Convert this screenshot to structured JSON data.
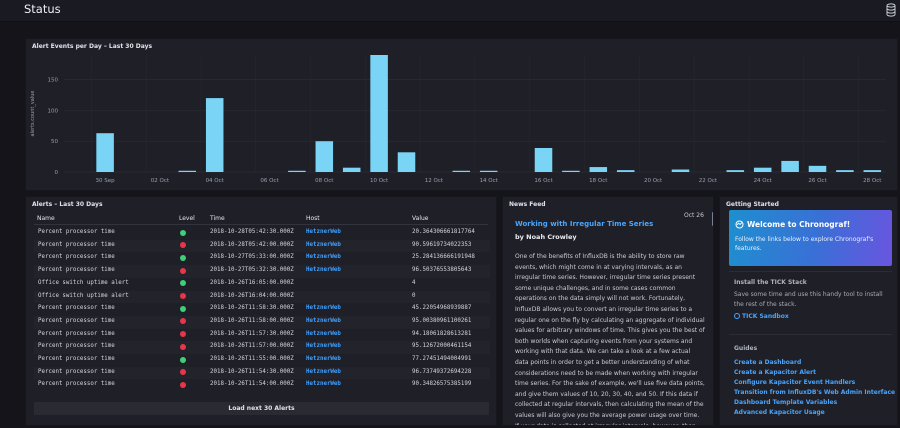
{
  "page": {
    "title": "Status"
  },
  "header_icons": {
    "database": "database-icon"
  },
  "chart_panel": {
    "title": "Alert Events per Day – Last 30 Days"
  },
  "chart_data": {
    "type": "bar",
    "title": "Alert Events per Day – Last 30 Days",
    "ylabel": "alerts.count_value",
    "xlabel": "",
    "ylim": [
      0,
      190
    ],
    "yticks": [
      0,
      50,
      100,
      150
    ],
    "xtick_labels": [
      "30 Sep",
      "02 Oct",
      "04 Oct",
      "06 Oct",
      "08 Oct",
      "10 Oct",
      "12 Oct",
      "14 Oct",
      "16 Oct",
      "18 Oct",
      "20 Oct",
      "22 Oct",
      "24 Oct",
      "26 Oct",
      "28 Oct"
    ],
    "categories": [
      "29 Sep",
      "30 Sep",
      "01 Oct",
      "02 Oct",
      "03 Oct",
      "04 Oct",
      "05 Oct",
      "06 Oct",
      "07 Oct",
      "08 Oct",
      "09 Oct",
      "10 Oct",
      "11 Oct",
      "12 Oct",
      "13 Oct",
      "14 Oct",
      "15 Oct",
      "16 Oct",
      "17 Oct",
      "18 Oct",
      "19 Oct",
      "20 Oct",
      "21 Oct",
      "22 Oct",
      "23 Oct",
      "24 Oct",
      "25 Oct",
      "26 Oct",
      "27 Oct",
      "28 Oct"
    ],
    "values": [
      0,
      63,
      0,
      0,
      2,
      120,
      0,
      0,
      2,
      50,
      7,
      190,
      32,
      0,
      2,
      2,
      0,
      39,
      2,
      8,
      3,
      0,
      4,
      0,
      3,
      7,
      18,
      10,
      3,
      3
    ],
    "bar_color": "#7ad4f6",
    "grid": true
  },
  "alerts": {
    "title": "Alerts – Last 30 Days",
    "columns": [
      "Name",
      "Level",
      "Time",
      "Host",
      "Value"
    ],
    "rows": [
      {
        "name": "Percent processor time",
        "level": "ok",
        "time": "2018-10-28T05:42:30.000Z",
        "host": "HetznerWeb",
        "value": "20.364306661817764"
      },
      {
        "name": "Percent processor time",
        "level": "critical",
        "time": "2018-10-28T05:42:00.000Z",
        "host": "HetznerWeb",
        "value": "90.59619734022353"
      },
      {
        "name": "Percent processor time",
        "level": "ok",
        "time": "2018-10-27T05:33:00.000Z",
        "host": "HetznerWeb",
        "value": "25.284136666191948"
      },
      {
        "name": "Percent processor time",
        "level": "critical",
        "time": "2018-10-27T05:32:30.000Z",
        "host": "HetznerWeb",
        "value": "96.50376553805643"
      },
      {
        "name": "Office switch uptime alert",
        "level": "ok",
        "time": "2018-10-26T16:05:00.000Z",
        "host": "",
        "value": "4"
      },
      {
        "name": "Office switch uptime alert",
        "level": "critical",
        "time": "2018-10-26T16:04:00.000Z",
        "host": "",
        "value": "0"
      },
      {
        "name": "Percent processor time",
        "level": "ok",
        "time": "2018-10-26T11:58:30.000Z",
        "host": "HetznerWeb",
        "value": "45.22054968939887"
      },
      {
        "name": "Percent processor time",
        "level": "critical",
        "time": "2018-10-26T11:58:00.000Z",
        "host": "HetznerWeb",
        "value": "95.00380961100261"
      },
      {
        "name": "Percent processor time",
        "level": "critical",
        "time": "2018-10-26T11:57:30.000Z",
        "host": "HetznerWeb",
        "value": "94.18061828613281"
      },
      {
        "name": "Percent processor time",
        "level": "critical",
        "time": "2018-10-26T11:57:00.000Z",
        "host": "HetznerWeb",
        "value": "95.12672000461154"
      },
      {
        "name": "Percent processor time",
        "level": "ok",
        "time": "2018-10-26T11:55:00.000Z",
        "host": "HetznerWeb",
        "value": "77.27451494004991"
      },
      {
        "name": "Percent processor time",
        "level": "critical",
        "time": "2018-10-26T11:54:30.000Z",
        "host": "HetznerWeb",
        "value": "96.73749372694228"
      },
      {
        "name": "Percent processor time",
        "level": "critical",
        "time": "2018-10-26T11:54:00.000Z",
        "host": "HetznerWeb",
        "value": "90.34826575385199"
      }
    ],
    "load_more": "Load next 30 Alerts",
    "level_colors": {
      "ok": "#3dd078",
      "critical": "#e8354a"
    }
  },
  "news": {
    "title": "News Feed",
    "date": "Oct 26",
    "article_title": "Working with Irregular Time Series",
    "author": "by Noah Crowley",
    "body": "One of the benefits of InfluxDB is the ability to store raw events, which might come in at varying intervals, as an irregular time series. However, irregular time series present some unique challenges, and in some cases common operations on the data simply will not work. Fortunately, InfluxDB allows you to convert an irregular time series to a regular one on the fly by calculating an aggregate of individual values for arbitrary windows of time. This gives you the best of both worlds when capturing events from your systems and working with that data. We can take a look at a few actual data points in order to get a better understanding of what considerations need to be made when working with irregular time series. For the sake of example, we'll use five data points, and give them values of 10, 20, 30, 40, and 50. If this data if collected at regular intervals, then calculating the mean of the values will also give you the average power usage over time. If your data is collected at irregular intervals, however, then calculating the mean of the values will not give"
  },
  "getting_started": {
    "title": "Getting Started",
    "welcome_title": "Welcome to Chronograf!",
    "welcome_desc": "Follow the links below to explore Chronograf's features.",
    "tick_heading": "Install the TICK Stack",
    "tick_desc": "Save some time and use this handy tool to install the rest of the stack.",
    "tick_link": "TICK Sandbox",
    "guides_heading": "Guides",
    "guides": [
      "Create a Dashboard",
      "Create a Kapacitor Alert",
      "Configure Kapacitor Event Handlers",
      "Transition from InfluxDB's Web Admin Interface",
      "Dashboard Template Variables",
      "Advanced Kapacitor Usage"
    ]
  }
}
